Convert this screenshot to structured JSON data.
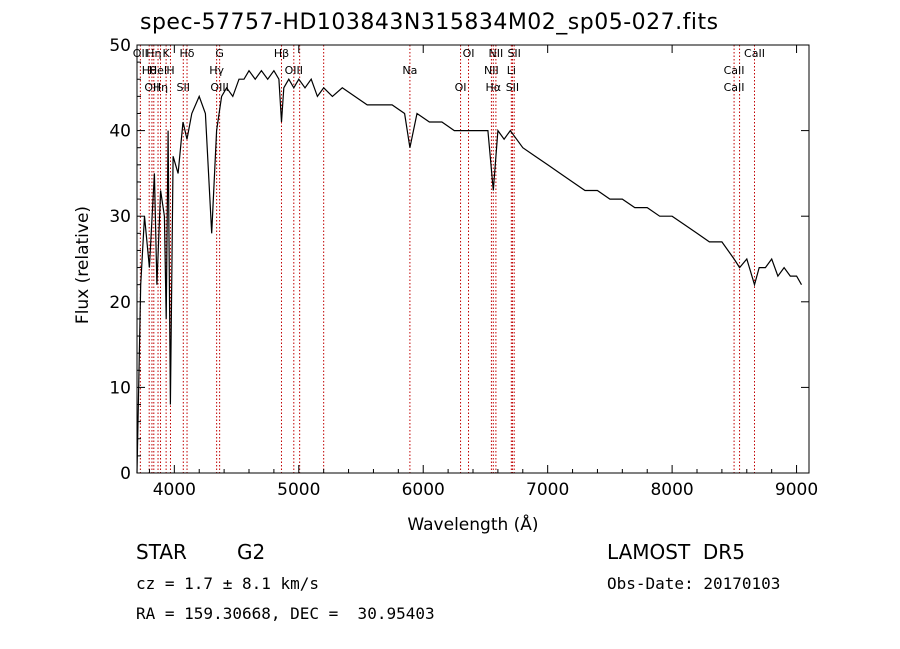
{
  "chart_data": {
    "type": "line",
    "title": "spec-57757-HD103843N315834M02_sp05-027.fits",
    "xlabel": "Wavelength (Å)",
    "ylabel": "Flux (relative)",
    "xlim": [
      3700,
      9100
    ],
    "ylim": [
      0,
      50
    ],
    "xticks": [
      4000,
      5000,
      6000,
      7000,
      8000,
      9000
    ],
    "yticks": [
      0,
      10,
      20,
      30,
      40,
      50
    ],
    "grid": false,
    "series": [
      {
        "color": "#000000",
        "x": [
          3700,
          3730,
          3760,
          3800,
          3840,
          3860,
          3890,
          3920,
          3935,
          3950,
          3968,
          3990,
          4030,
          4070,
          4102,
          4140,
          4200,
          4250,
          4300,
          4340,
          4380,
          4420,
          4470,
          4520,
          4560,
          4600,
          4650,
          4700,
          4750,
          4800,
          4840,
          4861,
          4880,
          4920,
          4960,
          5000,
          5050,
          5100,
          5150,
          5200,
          5270,
          5350,
          5450,
          5550,
          5650,
          5750,
          5850,
          5893,
          5950,
          6050,
          6150,
          6250,
          6350,
          6450,
          6520,
          6563,
          6600,
          6650,
          6700,
          6750,
          6800,
          6900,
          7000,
          7100,
          7200,
          7300,
          7400,
          7500,
          7600,
          7700,
          7800,
          7900,
          8000,
          8100,
          8200,
          8300,
          8400,
          8498,
          8542,
          8600,
          8662,
          8700,
          8750,
          8800,
          8850,
          8900,
          8950,
          9000,
          9040
        ],
        "y": [
          0,
          22,
          30,
          24,
          35,
          22,
          33,
          30,
          18,
          40,
          8,
          37,
          35,
          41,
          39,
          42,
          44,
          42,
          28,
          40,
          44,
          45,
          44,
          46,
          46,
          47,
          46,
          47,
          46,
          47,
          46,
          41,
          45,
          46,
          45,
          46,
          45,
          46,
          44,
          45,
          44,
          45,
          44,
          43,
          43,
          43,
          42,
          38,
          42,
          41,
          41,
          40,
          40,
          40,
          40,
          33,
          40,
          39,
          40,
          39,
          38,
          37,
          36,
          35,
          34,
          33,
          33,
          32,
          32,
          31,
          31,
          30,
          30,
          29,
          28,
          27,
          27,
          25,
          24,
          25,
          22,
          24,
          24,
          25,
          23,
          24,
          23,
          23,
          22
        ]
      }
    ],
    "line_markers": [
      {
        "x": 3727,
        "labels": [
          "OII"
        ]
      },
      {
        "x": 3798,
        "labels": [
          "Hθ"
        ]
      },
      {
        "x": 3820,
        "labels": [
          "OII"
        ]
      },
      {
        "x": 3835,
        "labels": [
          "Hη"
        ]
      },
      {
        "x": 3869,
        "labels": [
          "HeI"
        ]
      },
      {
        "x": 3889,
        "labels": [
          "Hη"
        ]
      },
      {
        "x": 3934,
        "labels": [
          "K"
        ]
      },
      {
        "x": 3969,
        "labels": [
          "H"
        ]
      },
      {
        "x": 4072,
        "labels": [
          "SII"
        ]
      },
      {
        "x": 4102,
        "labels": [
          "Hδ"
        ]
      },
      {
        "x": 4340,
        "labels": [
          "Hγ"
        ]
      },
      {
        "x": 4364,
        "labels": [
          "OIII",
          "G"
        ]
      },
      {
        "x": 4861,
        "labels": [
          "Hβ"
        ]
      },
      {
        "x": 4960,
        "labels": [
          "OIII"
        ]
      },
      {
        "x": 5007,
        "labels": []
      },
      {
        "x": 5200,
        "labels": []
      },
      {
        "x": 5893,
        "labels": [
          "Na"
        ]
      },
      {
        "x": 6300,
        "labels": [
          "OI"
        ]
      },
      {
        "x": 6364,
        "labels": [
          "OI"
        ]
      },
      {
        "x": 6548,
        "labels": [
          "NII"
        ]
      },
      {
        "x": 6563,
        "labels": [
          "Hα"
        ]
      },
      {
        "x": 6584,
        "labels": [
          "NII"
        ]
      },
      {
        "x": 6708,
        "labels": [
          "Li"
        ]
      },
      {
        "x": 6717,
        "labels": [
          "SII"
        ]
      },
      {
        "x": 6731,
        "labels": [
          "SII"
        ]
      },
      {
        "x": 8498,
        "labels": [
          "CaII",
          "CaII"
        ]
      },
      {
        "x": 8542,
        "labels": []
      },
      {
        "x": 8662,
        "labels": [
          "CaII"
        ]
      }
    ]
  },
  "info": {
    "class": "STAR",
    "subclass": "G2",
    "survey": "LAMOST  DR5",
    "cz": "cz = 1.7 ± 8.1 km/s",
    "obs_date": "Obs-Date: 20170103",
    "coords": "RA = 159.30668, DEC =  30.95403"
  }
}
